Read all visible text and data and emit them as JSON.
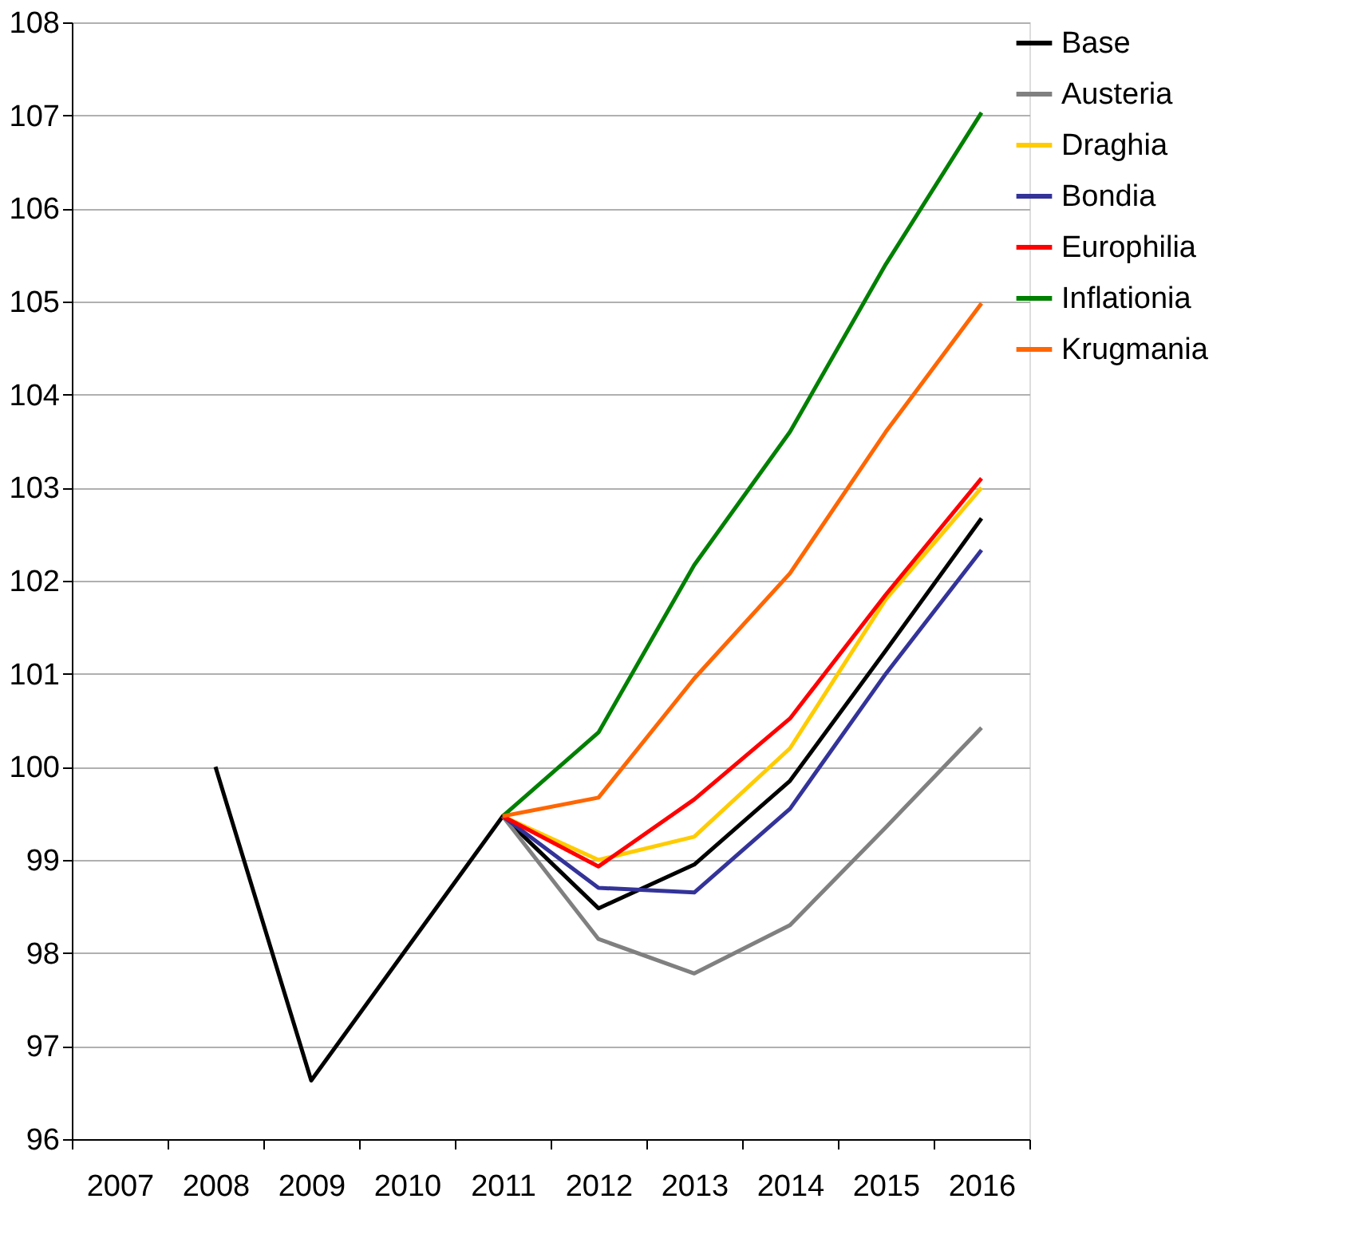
{
  "chart_data": {
    "type": "line",
    "categories": [
      "2007",
      "2008",
      "2009",
      "2010",
      "2011",
      "2012",
      "2013",
      "2014",
      "2015",
      "2016"
    ],
    "series": [
      {
        "name": "Base",
        "color": "#000000",
        "values": [
          null,
          100.0,
          96.63,
          98.05,
          99.47,
          98.48,
          98.95,
          99.85,
          101.25,
          102.67
        ]
      },
      {
        "name": "Austeria",
        "color": "#808080",
        "values": [
          null,
          null,
          null,
          null,
          99.47,
          98.15,
          97.78,
          98.3,
          99.35,
          100.42
        ]
      },
      {
        "name": "Draghia",
        "color": "#ffcc00",
        "values": [
          null,
          null,
          null,
          null,
          99.47,
          99.0,
          99.25,
          100.2,
          101.8,
          103.0
        ]
      },
      {
        "name": "Bondia",
        "color": "#333399",
        "values": [
          null,
          null,
          null,
          null,
          99.47,
          98.7,
          98.65,
          99.55,
          101.0,
          102.33
        ]
      },
      {
        "name": "Europhilia",
        "color": "#ff0000",
        "values": [
          null,
          null,
          null,
          null,
          99.47,
          98.93,
          99.65,
          100.52,
          101.85,
          103.1
        ]
      },
      {
        "name": "Inflationia",
        "color": "#008000",
        "values": [
          null,
          null,
          null,
          null,
          99.47,
          100.37,
          102.17,
          103.6,
          105.4,
          107.03
        ]
      },
      {
        "name": "Krugmania",
        "color": "#ff6600",
        "values": [
          null,
          null,
          null,
          null,
          99.47,
          99.67,
          100.95,
          102.08,
          103.6,
          104.98
        ]
      }
    ],
    "ylim": [
      96,
      108
    ],
    "yticks": [
      96,
      97,
      98,
      99,
      100,
      101,
      102,
      103,
      104,
      105,
      106,
      107,
      108
    ],
    "grid": "y",
    "legend": "right",
    "line_style": "solid",
    "marker": "none"
  }
}
